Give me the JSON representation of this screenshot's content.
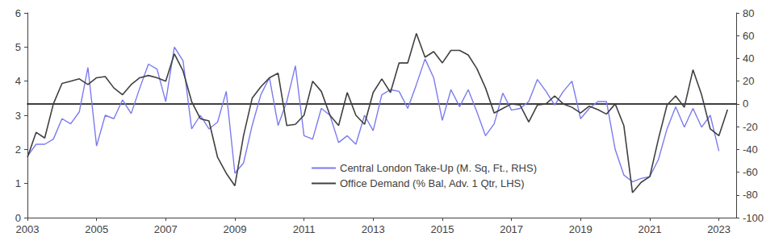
{
  "chart_data": {
    "type": "line",
    "x": [
      2003.0,
      2003.25,
      2003.5,
      2003.75,
      2004.0,
      2004.25,
      2004.5,
      2004.75,
      2005.0,
      2005.25,
      2005.5,
      2005.75,
      2006.0,
      2006.25,
      2006.5,
      2006.75,
      2007.0,
      2007.25,
      2007.5,
      2007.75,
      2008.0,
      2008.25,
      2008.5,
      2008.75,
      2009.0,
      2009.25,
      2009.5,
      2009.75,
      2010.0,
      2010.25,
      2010.5,
      2010.75,
      2011.0,
      2011.25,
      2011.5,
      2011.75,
      2012.0,
      2012.25,
      2012.5,
      2012.75,
      2013.0,
      2013.25,
      2013.5,
      2013.75,
      2014.0,
      2014.25,
      2014.5,
      2014.75,
      2015.0,
      2015.25,
      2015.5,
      2015.75,
      2016.0,
      2016.25,
      2016.5,
      2016.75,
      2017.0,
      2017.25,
      2017.5,
      2017.75,
      2018.0,
      2018.25,
      2018.5,
      2018.75,
      2019.0,
      2019.25,
      2019.5,
      2019.75,
      2020.0,
      2020.25,
      2020.5,
      2020.75,
      2021.0,
      2021.25,
      2021.5,
      2021.75,
      2022.0,
      2022.25,
      2022.5,
      2022.75,
      2023.0,
      2023.25
    ],
    "series": [
      {
        "name": "Central London Take-Up (M. Sq, Ft., RHS)",
        "color": "#7b7bef",
        "marker": "none",
        "line_style": "solid",
        "values": [
          1.8,
          2.15,
          2.15,
          2.3,
          2.9,
          2.75,
          3.1,
          4.4,
          2.1,
          3.0,
          2.9,
          3.45,
          3.05,
          3.8,
          4.5,
          4.35,
          3.4,
          5.0,
          4.6,
          2.6,
          3.0,
          2.6,
          2.8,
          3.7,
          1.3,
          1.6,
          2.7,
          3.6,
          4.1,
          2.7,
          3.4,
          4.45,
          2.4,
          2.3,
          3.2,
          3.0,
          2.2,
          2.4,
          2.15,
          3.0,
          2.55,
          3.6,
          3.75,
          3.7,
          3.2,
          3.9,
          4.65,
          4.1,
          2.85,
          3.75,
          3.25,
          3.75,
          3.1,
          2.4,
          2.75,
          3.65,
          3.15,
          3.2,
          3.4,
          4.05,
          3.7,
          3.3,
          3.7,
          4.0,
          2.9,
          3.2,
          3.4,
          3.4,
          2.0,
          1.25,
          1.05,
          1.15,
          1.2,
          1.7,
          2.6,
          3.25,
          2.65,
          3.2,
          2.65,
          3.0,
          1.95,
          null
        ]
      },
      {
        "name": "Office Demand (% Bal, Adv. 1 Qtr, LHS)",
        "color": "#404040",
        "marker": "none",
        "line_style": "solid",
        "axis": "y2",
        "values": [
          -47,
          -25,
          -30,
          0,
          18,
          20,
          22,
          17,
          23,
          24,
          14,
          8,
          17,
          23,
          25,
          23,
          20,
          44,
          29,
          2,
          -13,
          -15,
          -47,
          -61,
          -72,
          -28,
          5,
          15,
          23,
          27,
          -19,
          -18,
          -10,
          20,
          11,
          -10,
          -19,
          10,
          -10,
          -18,
          10,
          22,
          10,
          36,
          36,
          62,
          41,
          46,
          36,
          47,
          47,
          43,
          31,
          14,
          -8,
          -4,
          0,
          -1,
          -16,
          -1,
          0,
          7,
          0,
          -3,
          -8,
          -2,
          -5,
          -9,
          0,
          -19,
          -78,
          -69,
          -64,
          -31,
          -1,
          7,
          -3,
          30,
          8,
          -22,
          -28,
          -5
        ]
      }
    ],
    "xlim": [
      2003,
      2023.5
    ],
    "xticks": [
      2003,
      2005,
      2007,
      2009,
      2011,
      2013,
      2015,
      2017,
      2019,
      2021,
      2023
    ],
    "ylim": [
      0,
      6
    ],
    "yticks": [
      0,
      1,
      2,
      3,
      4,
      5,
      6
    ],
    "y2lim": [
      -100,
      80
    ],
    "y2ticks": [
      -100,
      -80,
      -60,
      -40,
      -20,
      0,
      20,
      40,
      60,
      80
    ],
    "grid": false,
    "legend": "bottom"
  }
}
